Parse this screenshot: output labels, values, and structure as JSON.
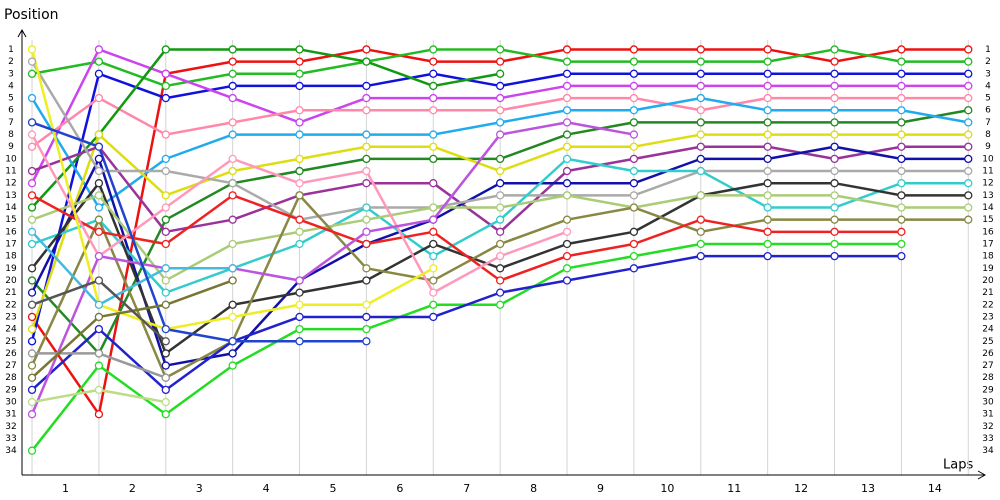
{
  "chart_data": {
    "type": "line",
    "ylabel": "Position",
    "xlabel": "Laps",
    "x": [
      0,
      1,
      2,
      3,
      4,
      5,
      6,
      7,
      8,
      9,
      10,
      11,
      12,
      13,
      14
    ],
    "xlim": [
      -0.15,
      14.25
    ],
    "xticks": [
      {
        "value": 0.5,
        "label": "1"
      },
      {
        "value": 1.5,
        "label": "2"
      },
      {
        "value": 2.5,
        "label": "3"
      },
      {
        "value": 3.5,
        "label": "4"
      },
      {
        "value": 4.5,
        "label": "5"
      },
      {
        "value": 5.5,
        "label": "6"
      },
      {
        "value": 6.5,
        "label": "7"
      },
      {
        "value": 7.5,
        "label": "8"
      },
      {
        "value": 8.5,
        "label": "9"
      },
      {
        "value": 9.5,
        "label": "10"
      },
      {
        "value": 10.5,
        "label": "11"
      },
      {
        "value": 11.5,
        "label": "12"
      },
      {
        "value": 12.5,
        "label": "13"
      },
      {
        "value": 13.5,
        "label": "14"
      }
    ],
    "ylim": [
      36,
      -0.6
    ],
    "yticks": [
      1,
      2,
      3,
      4,
      5,
      6,
      7,
      8,
      9,
      10,
      11,
      12,
      13,
      14,
      15,
      16,
      17,
      18,
      19,
      20,
      21,
      22,
      23,
      24,
      25,
      26,
      27,
      28,
      29,
      30,
      31,
      32,
      33,
      34
    ],
    "grid": true,
    "series": [
      {
        "color": "#ee1111",
        "values": [
          23,
          31,
          3,
          2,
          2,
          1,
          2,
          2,
          1,
          1,
          1,
          1,
          2,
          1,
          1
        ]
      },
      {
        "color": "#22bb22",
        "values": [
          3,
          2,
          4,
          3,
          3,
          2,
          1,
          1,
          2,
          2,
          2,
          2,
          1,
          2,
          2
        ]
      },
      {
        "color": "#1111dd",
        "values": [
          25,
          3,
          5,
          4,
          4,
          4,
          3,
          4,
          3,
          3,
          3,
          3,
          3,
          3,
          3
        ]
      },
      {
        "color": "#cc44ee",
        "values": [
          12,
          1,
          3,
          5,
          7,
          5,
          5,
          5,
          4,
          4,
          4,
          4,
          4,
          4,
          4
        ]
      },
      {
        "color": "#ff88aa",
        "values": [
          9,
          5,
          8,
          7,
          6,
          6,
          6,
          6,
          5,
          5,
          6,
          5,
          5,
          5,
          5
        ]
      },
      {
        "color": "#119911",
        "values": [
          14,
          8,
          1,
          1,
          1,
          2,
          4,
          3,
          null,
          null,
          null,
          null,
          null,
          null,
          null
        ]
      },
      {
        "color": "#228822",
        "values": [
          20,
          26,
          15,
          12,
          11,
          10,
          10,
          10,
          8,
          7,
          7,
          7,
          7,
          7,
          6
        ]
      },
      {
        "color": "#22aaee",
        "values": [
          5,
          14,
          10,
          8,
          8,
          8,
          8,
          7,
          6,
          6,
          5,
          6,
          6,
          6,
          7
        ]
      },
      {
        "color": "#dddd11",
        "values": [
          24,
          8,
          13,
          11,
          10,
          9,
          9,
          11,
          9,
          9,
          8,
          8,
          8,
          8,
          8
        ]
      },
      {
        "color": "#993399",
        "values": [
          11,
          9,
          16,
          15,
          13,
          12,
          12,
          16,
          11,
          10,
          9,
          9,
          10,
          9,
          9
        ]
      },
      {
        "color": "#1111aa",
        "values": [
          21,
          10,
          27,
          26,
          20,
          17,
          15,
          12,
          12,
          12,
          10,
          10,
          9,
          10,
          10
        ]
      },
      {
        "color": "#aaaaaa",
        "values": [
          2,
          11,
          11,
          12,
          15,
          14,
          14,
          13,
          13,
          13,
          11,
          11,
          11,
          11,
          11
        ]
      },
      {
        "color": "#33cccc",
        "values": [
          17,
          15,
          21,
          19,
          17,
          14,
          18,
          15,
          10,
          11,
          11,
          14,
          14,
          12,
          12
        ]
      },
      {
        "color": "#333333",
        "values": [
          19,
          12,
          26,
          22,
          21,
          20,
          17,
          19,
          17,
          16,
          13,
          12,
          12,
          13,
          13
        ]
      },
      {
        "color": "#aacc77",
        "values": [
          15,
          13,
          20,
          17,
          16,
          15,
          14,
          14,
          13,
          14,
          13,
          13,
          13,
          14,
          14
        ]
      },
      {
        "color": "#888844",
        "values": [
          27,
          15,
          28,
          25,
          13,
          19,
          20,
          17,
          15,
          14,
          16,
          15,
          15,
          15,
          15
        ]
      },
      {
        "color": "#ee2222",
        "values": [
          13,
          16,
          17,
          13,
          15,
          17,
          16,
          20,
          18,
          17,
          15,
          16,
          16,
          16,
          null
        ]
      },
      {
        "color": "#22dd22",
        "values": [
          34,
          27,
          31,
          27,
          24,
          24,
          22,
          22,
          19,
          18,
          17,
          17,
          17,
          17,
          null
        ]
      },
      {
        "color": "#2222cc",
        "values": [
          29,
          24,
          29,
          25,
          23,
          23,
          23,
          21,
          20,
          19,
          18,
          18,
          18,
          18,
          null
        ]
      },
      {
        "color": "#ff99bb",
        "values": [
          8,
          18,
          14,
          10,
          12,
          11,
          21,
          18,
          16,
          null,
          null,
          null,
          null,
          null,
          null
        ]
      },
      {
        "color": "#bb55dd",
        "values": [
          31,
          18,
          19,
          19,
          20,
          16,
          15,
          8,
          7,
          8,
          null,
          null,
          null,
          null,
          null
        ]
      },
      {
        "color": "#eeee22",
        "values": [
          1,
          22,
          24,
          23,
          22,
          22,
          19,
          null,
          null,
          null,
          null,
          null,
          null,
          null,
          null
        ]
      },
      {
        "color": "#44bbdd",
        "values": [
          16,
          22,
          19,
          19,
          null,
          null,
          null,
          null,
          null,
          null,
          null,
          null,
          null,
          null,
          null
        ]
      },
      {
        "color": "#2244cc",
        "values": [
          7,
          9,
          24,
          25,
          25,
          25,
          null,
          null,
          null,
          null,
          null,
          null,
          null,
          null,
          null
        ]
      },
      {
        "color": "#999999",
        "values": [
          26,
          26,
          28,
          null,
          null,
          null,
          null,
          null,
          null,
          null,
          null,
          null,
          null,
          null,
          null
        ]
      },
      {
        "color": "#bbdd88",
        "values": [
          30,
          29,
          30,
          null,
          null,
          null,
          null,
          null,
          null,
          null,
          null,
          null,
          null,
          null,
          null
        ]
      },
      {
        "color": "#777733",
        "values": [
          28,
          23,
          22,
          20,
          null,
          null,
          null,
          null,
          null,
          null,
          null,
          null,
          null,
          null,
          null
        ]
      },
      {
        "color": "#555555",
        "values": [
          22,
          20,
          25,
          null,
          null,
          null,
          null,
          null,
          null,
          null,
          null,
          null,
          null,
          null,
          null
        ]
      }
    ]
  }
}
